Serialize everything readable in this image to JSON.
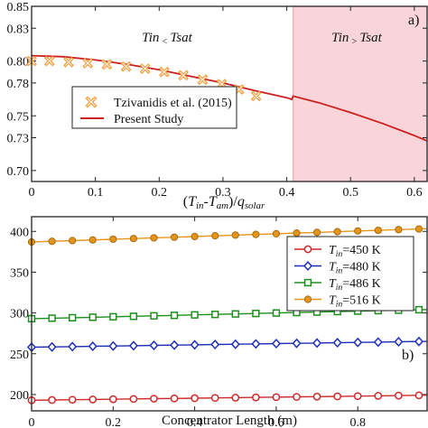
{
  "colors": {
    "present_study": "#cc1f1f",
    "tzivanidis_marker": "#f0a040",
    "shaded_region": "#f9d5d9",
    "series_450": "#cc2a2a",
    "series_480": "#1f2fb8",
    "series_486": "#1e8f1e",
    "series_516": "#e6941a"
  },
  "chart_data": [
    {
      "type": "line",
      "panel_label": "a)",
      "xlabel": "(T_in-T_am)/q_solar",
      "xlabel_parts": [
        "(",
        "T",
        "in",
        "-",
        "T",
        "am",
        ")/",
        "q",
        "solar"
      ],
      "ylabel": "",
      "xlim": [
        0,
        0.62
      ],
      "ylim": [
        0.69,
        0.85
      ],
      "xticks": [
        "0",
        "0.1",
        "0.2",
        "0.3",
        "0.4",
        "0.5",
        "0.6"
      ],
      "yticks": [
        "0.70",
        "0.73",
        "0.75",
        "0.78",
        "0.80",
        "0.83",
        "0.85"
      ],
      "shaded_region": {
        "x_start": 0.41,
        "x_end": 0.62
      },
      "region_labels": {
        "left": [
          "T",
          "in",
          " < ",
          "T",
          "sat"
        ],
        "right": [
          "T",
          "in",
          " > ",
          "T",
          "sat"
        ]
      },
      "legend": {
        "placement": "center-left",
        "entries": [
          "Tzivanidis et al. (2015)",
          "Present Study"
        ]
      },
      "series": [
        {
          "name": "Tzivanidis et al. (2015)",
          "style": "marker",
          "x": [
            0.0,
            0.028,
            0.058,
            0.088,
            0.118,
            0.148,
            0.178,
            0.208,
            0.238,
            0.268,
            0.298,
            0.325,
            0.352
          ],
          "y": [
            0.8,
            0.8,
            0.799,
            0.798,
            0.797,
            0.795,
            0.793,
            0.79,
            0.787,
            0.783,
            0.779,
            0.774,
            0.768
          ]
        },
        {
          "name": "Present Study",
          "style": "line",
          "x": [
            0.0,
            0.05,
            0.1,
            0.15,
            0.2,
            0.25,
            0.3,
            0.35,
            0.4,
            0.408,
            0.41,
            0.45,
            0.5,
            0.55,
            0.6,
            0.62
          ],
          "y": [
            0.805,
            0.804,
            0.801,
            0.797,
            0.792,
            0.786,
            0.78,
            0.773,
            0.7665,
            0.765,
            0.768,
            0.762,
            0.753,
            0.743,
            0.732,
            0.727
          ]
        }
      ]
    },
    {
      "type": "line",
      "panel_label": "b)",
      "xlabel": "Concentrator Length (m)",
      "ylabel": "",
      "xlim": [
        0,
        0.97
      ],
      "ylim": [
        180,
        418
      ],
      "xticks": [
        "0",
        "0.2",
        "0.4",
        "0.6",
        "0.8"
      ],
      "yticks": [
        "200",
        "250",
        "300",
        "350",
        "400"
      ],
      "legend": {
        "placement": "top-right",
        "entries": [
          [
            "T",
            "in",
            "=450 K"
          ],
          [
            "T",
            "in",
            "=480 K"
          ],
          [
            "T",
            "in",
            "=486 K"
          ],
          [
            "T",
            "in",
            "=516 K"
          ]
        ]
      },
      "x": [
        0.0,
        0.05,
        0.1,
        0.15,
        0.2,
        0.25,
        0.3,
        0.35,
        0.4,
        0.45,
        0.5,
        0.55,
        0.6,
        0.65,
        0.7,
        0.75,
        0.8,
        0.85,
        0.9,
        0.95
      ],
      "series": [
        {
          "name": "T_in=450 K",
          "marker": "circle",
          "start": 193,
          "end": 199
        },
        {
          "name": "T_in=480 K",
          "marker": "diamond",
          "start": 258,
          "end": 265
        },
        {
          "name": "T_in=486 K",
          "marker": "square",
          "start": 293,
          "end": 304
        },
        {
          "name": "T_in=516 K",
          "marker": "circle-filled",
          "start": 387,
          "end": 403
        }
      ]
    }
  ]
}
